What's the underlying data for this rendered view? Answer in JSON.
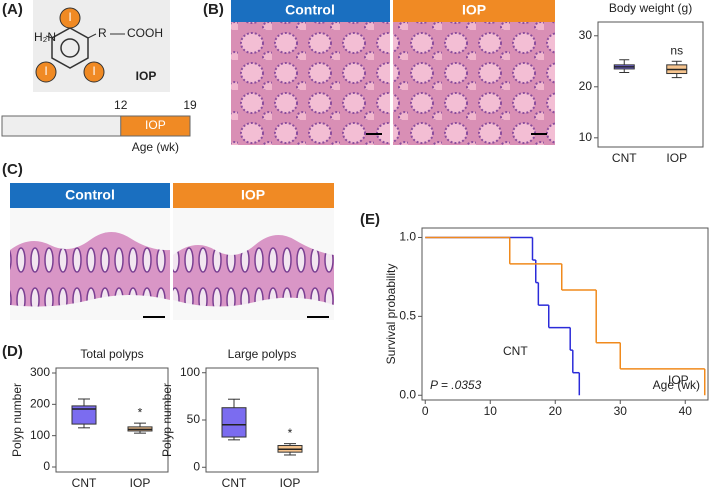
{
  "panels": {
    "a": "(A)",
    "b": "(B)",
    "c": "(C)",
    "d": "(D)",
    "e": "(E)"
  },
  "structure": {
    "amine": "H₂N",
    "r_group": "R",
    "acid": "COOH",
    "iodines": [
      "I",
      "I",
      "I"
    ],
    "name": "IOP"
  },
  "timeline": {
    "xlim": [
      0,
      19
    ],
    "xticks": [
      12,
      19
    ],
    "treatment": "IOP",
    "xlabel": "Age (wk)"
  },
  "histology_b": {
    "control": "Control",
    "treated": "IOP"
  },
  "histology_c": {
    "control": "Control",
    "treated": "IOP"
  },
  "chart_data": [
    {
      "type": "box",
      "title": "Body weight (g)",
      "categories": [
        "CNT",
        "IOP"
      ],
      "colors": [
        "#7b6cf0",
        "#f6c48e"
      ],
      "boxes": [
        {
          "min": 22.8,
          "q1": 23.5,
          "median": 23.9,
          "q3": 24.3,
          "max": 25.3
        },
        {
          "min": 21.8,
          "q1": 22.6,
          "median": 23.4,
          "q3": 24.3,
          "max": 25.0
        }
      ],
      "annotations": [
        null,
        "ns"
      ],
      "ylim": [
        8.2,
        32.7
      ],
      "yticks": [
        10,
        20,
        30
      ]
    },
    {
      "type": "box",
      "title": "Total polyps",
      "ylabel": "Polyp number",
      "categories": [
        "CNT",
        "IOP"
      ],
      "colors": [
        "#7b6cf0",
        "#f6c48e"
      ],
      "boxes": [
        {
          "min": 125,
          "q1": 137,
          "median": 185,
          "q3": 195,
          "max": 217
        },
        {
          "min": 108,
          "q1": 115,
          "median": 120,
          "q3": 128,
          "max": 140
        }
      ],
      "annotations": [
        null,
        "*"
      ],
      "ylim": [
        -16,
        316
      ],
      "yticks": [
        0,
        100,
        200,
        300
      ]
    },
    {
      "type": "box",
      "title": "Large polyps",
      "ylabel": "Polyp number",
      "categories": [
        "CNT",
        "IOP"
      ],
      "colors": [
        "#7b6cf0",
        "#f6c48e"
      ],
      "boxes": [
        {
          "min": 29,
          "q1": 32,
          "median": 45,
          "q3": 63,
          "max": 72
        },
        {
          "min": 13,
          "q1": 16,
          "median": 19,
          "q3": 23,
          "max": 25
        }
      ],
      "annotations": [
        null,
        "*"
      ],
      "ylim": [
        -5,
        105
      ],
      "yticks": [
        0,
        50,
        100
      ]
    },
    {
      "type": "step",
      "ylabel": "Survival probability",
      "xlabel": "Age (wk)",
      "annotation": "P = .0353",
      "series": [
        {
          "name": "CNT",
          "color": "#2b2bd9",
          "x": [
            0,
            16.5,
            17,
            17.4,
            19,
            22.3,
            22.7,
            23.7
          ],
          "values": [
            1,
            0.857,
            0.714,
            0.571,
            0.429,
            0.286,
            0.143,
            0
          ]
        },
        {
          "name": "IOP",
          "color": "#f08a1c",
          "x": [
            0,
            13,
            21,
            26.3,
            30,
            43
          ],
          "values": [
            1,
            0.833,
            0.667,
            0.333,
            0.167,
            0
          ]
        }
      ],
      "xlim": [
        -0.5,
        43.5
      ],
      "xticks": [
        0,
        10,
        20,
        30,
        40
      ],
      "ylim": [
        -0.03,
        1.06
      ],
      "yticks": [
        {
          "value": 0,
          "label": "0.0"
        },
        0.5,
        {
          "value": 1,
          "label": "1.0"
        }
      ]
    }
  ]
}
